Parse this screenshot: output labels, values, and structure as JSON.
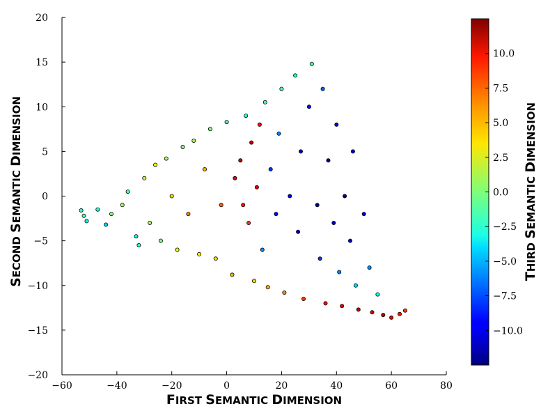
{
  "chart_data": {
    "type": "scatter",
    "xlabel": {
      "first": "F",
      "rest1": "IRST ",
      "s": "S",
      "rest2": "EMANTIC ",
      "d": "D",
      "rest3": "IMENSION"
    },
    "ylabel": {
      "first": "S",
      "rest1": "ECOND ",
      "s": "S",
      "rest2": "EMANTIC ",
      "d": "D",
      "rest3": "IMENSION"
    },
    "colorbar_label": {
      "first": "T",
      "rest1": "HIRD ",
      "s": "S",
      "rest2": "EMANTIC ",
      "d": "D",
      "rest3": "IMENSION"
    },
    "xlim": [
      -60,
      80
    ],
    "ylim": [
      -20,
      20
    ],
    "clim": [
      -12.5,
      12.5
    ],
    "x_ticks": [
      "−60",
      "−40",
      "−20",
      "0",
      "20",
      "40",
      "60",
      "80"
    ],
    "y_ticks": [
      "−20",
      "−15",
      "−10",
      "−5",
      "0",
      "5",
      "10",
      "15",
      "20"
    ],
    "colorbar_ticks": [
      "−10.0",
      "−7.5",
      "−5.0",
      "−2.5",
      "0.0",
      "2.5",
      "5.0",
      "7.5",
      "10.0"
    ],
    "colormap": "jet",
    "grid": false,
    "points": [
      {
        "x": -53,
        "y": -1.6,
        "c": -2
      },
      {
        "x": -52,
        "y": -2.2,
        "c": -1
      },
      {
        "x": -51,
        "y": -2.8,
        "c": -3
      },
      {
        "x": -47,
        "y": -1.5,
        "c": -2
      },
      {
        "x": -44,
        "y": -3.2,
        "c": -4
      },
      {
        "x": -42,
        "y": -2.0,
        "c": 0
      },
      {
        "x": -38,
        "y": -1.0,
        "c": 1
      },
      {
        "x": -36,
        "y": 0.5,
        "c": -1
      },
      {
        "x": -33,
        "y": -4.5,
        "c": -3
      },
      {
        "x": -32,
        "y": -5.5,
        "c": -2
      },
      {
        "x": -30,
        "y": 2.0,
        "c": 2
      },
      {
        "x": -28,
        "y": -3.0,
        "c": 1
      },
      {
        "x": -26,
        "y": 3.5,
        "c": 3
      },
      {
        "x": -24,
        "y": -5.0,
        "c": 0
      },
      {
        "x": -22,
        "y": 4.2,
        "c": 1
      },
      {
        "x": -20,
        "y": 0.0,
        "c": 4
      },
      {
        "x": -18,
        "y": -6.0,
        "c": 2
      },
      {
        "x": -16,
        "y": 5.5,
        "c": 0
      },
      {
        "x": -14,
        "y": -2.0,
        "c": 6
      },
      {
        "x": -12,
        "y": 6.2,
        "c": 1
      },
      {
        "x": -10,
        "y": -6.5,
        "c": 3
      },
      {
        "x": -8,
        "y": 3.0,
        "c": 5
      },
      {
        "x": -6,
        "y": 7.5,
        "c": 0
      },
      {
        "x": -4,
        "y": -7.0,
        "c": 4
      },
      {
        "x": -2,
        "y": -1.0,
        "c": 7
      },
      {
        "x": 0,
        "y": 8.3,
        "c": -1
      },
      {
        "x": 2,
        "y": -8.8,
        "c": 5
      },
      {
        "x": 3,
        "y": 2.0,
        "c": 10
      },
      {
        "x": 5,
        "y": 4.0,
        "c": 11
      },
      {
        "x": 6,
        "y": -1.0,
        "c": 9
      },
      {
        "x": 7,
        "y": 9.0,
        "c": -2
      },
      {
        "x": 8,
        "y": -3.0,
        "c": 8
      },
      {
        "x": 9,
        "y": 6.0,
        "c": 11
      },
      {
        "x": 10,
        "y": -9.5,
        "c": 4
      },
      {
        "x": 11,
        "y": 1.0,
        "c": 10
      },
      {
        "x": 12,
        "y": 8.0,
        "c": 9
      },
      {
        "x": 13,
        "y": -6.0,
        "c": -6
      },
      {
        "x": 14,
        "y": 10.5,
        "c": -1
      },
      {
        "x": 15,
        "y": -10.2,
        "c": 5
      },
      {
        "x": 16,
        "y": 3.0,
        "c": -8
      },
      {
        "x": 18,
        "y": -2.0,
        "c": -9
      },
      {
        "x": 19,
        "y": 7.0,
        "c": -6
      },
      {
        "x": 20,
        "y": 12.0,
        "c": -1
      },
      {
        "x": 21,
        "y": -10.8,
        "c": 6
      },
      {
        "x": 23,
        "y": 0.0,
        "c": -10
      },
      {
        "x": 25,
        "y": 13.5,
        "c": -2
      },
      {
        "x": 26,
        "y": -4.0,
        "c": -11
      },
      {
        "x": 27,
        "y": 5.0,
        "c": -11
      },
      {
        "x": 28,
        "y": -11.5,
        "c": 8
      },
      {
        "x": 30,
        "y": 10.0,
        "c": -9
      },
      {
        "x": 31,
        "y": 14.8,
        "c": -1
      },
      {
        "x": 33,
        "y": -1.0,
        "c": -12
      },
      {
        "x": 34,
        "y": -7.0,
        "c": -8
      },
      {
        "x": 35,
        "y": 12.0,
        "c": -7
      },
      {
        "x": 36,
        "y": -12.0,
        "c": 9
      },
      {
        "x": 37,
        "y": 4.0,
        "c": -12
      },
      {
        "x": 39,
        "y": -3.0,
        "c": -11
      },
      {
        "x": 40,
        "y": 8.0,
        "c": -10
      },
      {
        "x": 41,
        "y": -8.5,
        "c": -6
      },
      {
        "x": 42,
        "y": -12.3,
        "c": 10
      },
      {
        "x": 43,
        "y": 0.0,
        "c": -12
      },
      {
        "x": 45,
        "y": -5.0,
        "c": -10
      },
      {
        "x": 46,
        "y": 5.0,
        "c": -11
      },
      {
        "x": 47,
        "y": -10.0,
        "c": -4
      },
      {
        "x": 48,
        "y": -12.7,
        "c": 11
      },
      {
        "x": 50,
        "y": -2.0,
        "c": -10
      },
      {
        "x": 52,
        "y": -8.0,
        "c": -6
      },
      {
        "x": 53,
        "y": -13.0,
        "c": 10
      },
      {
        "x": 55,
        "y": -11.0,
        "c": -3
      },
      {
        "x": 57,
        "y": -13.3,
        "c": 11
      },
      {
        "x": 60,
        "y": -13.6,
        "c": 10
      },
      {
        "x": 63,
        "y": -13.2,
        "c": 9
      },
      {
        "x": 65,
        "y": -12.8,
        "c": 8
      }
    ]
  }
}
